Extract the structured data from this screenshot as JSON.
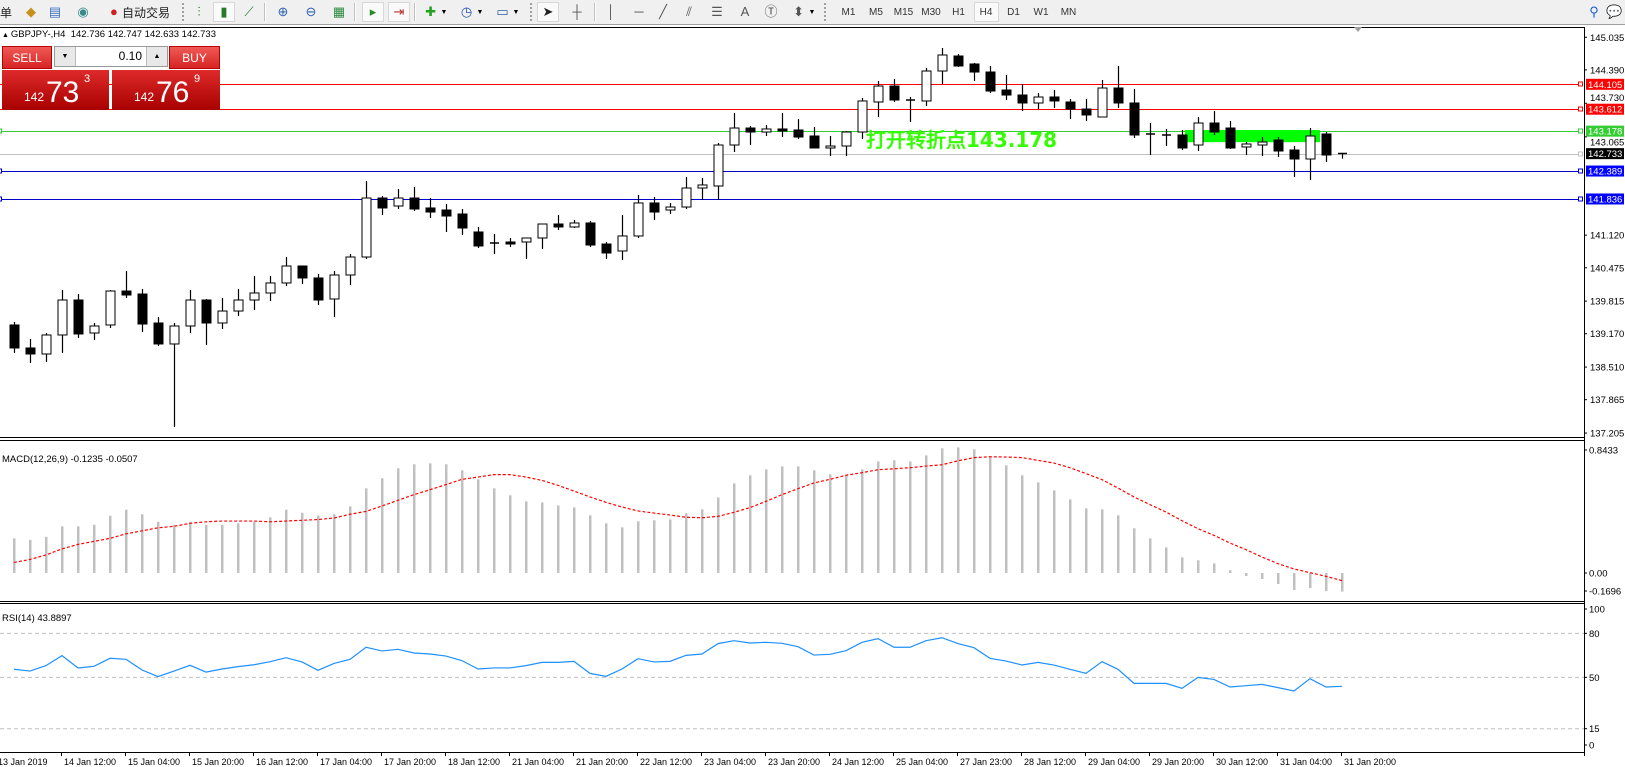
{
  "toolbar": {
    "menu_fragment": "单",
    "auto_trading": "自动交易",
    "timeframes": [
      "M1",
      "M5",
      "M15",
      "M30",
      "H1",
      "H4",
      "D1",
      "W1",
      "MN"
    ],
    "active_timeframe": "H4"
  },
  "header": {
    "symbol": "GBPJPY-,H4",
    "ohlc": "142.736 142.747 142.633 142.733"
  },
  "trade_panel": {
    "sell_label": "SELL",
    "buy_label": "BUY",
    "lot": "0.10",
    "sell_price": {
      "prefix": "142",
      "big": "73",
      "sup": "3"
    },
    "buy_price": {
      "prefix": "142",
      "big": "76",
      "sup": "9"
    },
    "color": "#d62424"
  },
  "annotation": {
    "text": "打开转折点143.178",
    "color": "#33ff00",
    "box_color": "#00ff00"
  },
  "chart_data": [
    {
      "type": "candlestick",
      "symbol": "GBPJPY-",
      "timeframe": "H4",
      "ylim": [
        137.205,
        145.035
      ],
      "y_ticks": [
        "145.035",
        "144.390",
        "143.730",
        "143.065",
        "141.120",
        "140.475",
        "139.815",
        "139.170",
        "138.510",
        "137.865",
        "137.205"
      ],
      "x_tick_labels": [
        "13 Jan 2019",
        "14 Jan 12:00",
        "15 Jan 04:00",
        "15 Jan 20:00",
        "16 Jan 12:00",
        "17 Jan 04:00",
        "17 Jan 20:00",
        "18 Jan 12:00",
        "21 Jan 04:00",
        "21 Jan 20:00",
        "22 Jan 12:00",
        "23 Jan 04:00",
        "23 Jan 20:00",
        "24 Jan 12:00",
        "25 Jan 04:00",
        "27 Jan 23:00",
        "28 Jan 12:00",
        "29 Jan 04:00",
        "29 Jan 20:00",
        "30 Jan 12:00",
        "31 Jan 04:00",
        "31 Jan 20:00"
      ],
      "bull_color": "#ffffff",
      "bear_color": "#000000",
      "candles_ohlc": [
        [
          139.343,
          139.402,
          138.789,
          138.888
        ],
        [
          138.888,
          139.066,
          138.591,
          138.769
        ],
        [
          138.769,
          139.184,
          138.61,
          139.145
        ],
        [
          139.145,
          140.035,
          138.789,
          139.837
        ],
        [
          139.837,
          139.956,
          139.085,
          139.165
        ],
        [
          139.184,
          139.382,
          139.046,
          139.323
        ],
        [
          139.343,
          140.035,
          139.283,
          140.015
        ],
        [
          140.015,
          140.411,
          139.877,
          139.936
        ],
        [
          139.956,
          140.055,
          139.204,
          139.362
        ],
        [
          139.382,
          139.501,
          138.927,
          138.967
        ],
        [
          138.967,
          139.382,
          137.324,
          139.323
        ],
        [
          139.323,
          140.035,
          139.184,
          139.837
        ],
        [
          139.837,
          139.857,
          138.947,
          139.382
        ],
        [
          139.382,
          139.877,
          139.263,
          139.619
        ],
        [
          139.619,
          140.055,
          139.521,
          139.837
        ],
        [
          139.837,
          140.312,
          139.639,
          139.976
        ],
        [
          139.976,
          140.312,
          139.817,
          140.174
        ],
        [
          140.174,
          140.688,
          140.114,
          140.51
        ],
        [
          140.51,
          140.52,
          140.154,
          140.273
        ],
        [
          140.273,
          140.352,
          139.738,
          139.837
        ],
        [
          139.857,
          140.411,
          139.501,
          140.332
        ],
        [
          140.332,
          140.747,
          140.134,
          140.688
        ],
        [
          140.688,
          142.192,
          140.648,
          141.855
        ],
        [
          141.855,
          141.895,
          141.519,
          141.658
        ],
        [
          141.697,
          142.033,
          141.638,
          141.855
        ],
        [
          141.855,
          142.073,
          141.598,
          141.638
        ],
        [
          141.658,
          141.855,
          141.46,
          141.578
        ],
        [
          141.618,
          141.737,
          141.183,
          141.499
        ],
        [
          141.539,
          141.638,
          141.123,
          141.262
        ],
        [
          141.183,
          141.282,
          140.866,
          140.906
        ],
        [
          140.965,
          141.143,
          140.747,
          140.965
        ],
        [
          140.985,
          141.064,
          140.886,
          140.945
        ],
        [
          140.985,
          141.064,
          140.648,
          141.064
        ],
        [
          141.064,
          141.341,
          140.846,
          141.341
        ],
        [
          141.341,
          141.519,
          141.222,
          141.282
        ],
        [
          141.282,
          141.42,
          141.262,
          141.361
        ],
        [
          141.361,
          141.4,
          140.886,
          140.925
        ],
        [
          140.945,
          140.985,
          140.648,
          140.767
        ],
        [
          140.807,
          141.519,
          140.629,
          141.104
        ],
        [
          141.104,
          141.915,
          141.064,
          141.757
        ],
        [
          141.757,
          141.875,
          141.42,
          141.578
        ],
        [
          141.618,
          141.757,
          141.539,
          141.677
        ],
        [
          141.677,
          142.271,
          141.638,
          142.053
        ],
        [
          142.053,
          142.251,
          141.816,
          142.113
        ],
        [
          142.093,
          142.944,
          141.816,
          142.904
        ],
        [
          142.904,
          143.537,
          142.766,
          143.24
        ],
        [
          143.24,
          143.28,
          142.904,
          143.161
        ],
        [
          143.161,
          143.3,
          143.082,
          143.221
        ],
        [
          143.221,
          143.537,
          143.062,
          143.181
        ],
        [
          143.201,
          143.418,
          143.023,
          143.062
        ],
        [
          143.082,
          143.26,
          142.845,
          142.845
        ],
        [
          142.845,
          143.082,
          142.686,
          142.884
        ],
        [
          142.884,
          143.181,
          142.686,
          143.161
        ],
        [
          143.161,
          143.834,
          143.023,
          143.775
        ],
        [
          143.755,
          144.17,
          143.458,
          144.071
        ],
        [
          144.071,
          144.21,
          143.755,
          143.794
        ],
        [
          143.794,
          143.854,
          143.359,
          143.785
        ],
        [
          143.775,
          144.428,
          143.676,
          144.368
        ],
        [
          144.368,
          144.823,
          144.111,
          144.685
        ],
        [
          144.665,
          144.705,
          144.447,
          144.467
        ],
        [
          144.507,
          144.527,
          144.17,
          144.348
        ],
        [
          144.348,
          144.467,
          143.933,
          143.972
        ],
        [
          143.992,
          144.289,
          143.794,
          143.893
        ],
        [
          143.893,
          144.111,
          143.577,
          143.735
        ],
        [
          143.735,
          143.933,
          143.616,
          143.854
        ],
        [
          143.854,
          143.992,
          143.636,
          143.775
        ],
        [
          143.755,
          143.814,
          143.418,
          143.616
        ],
        [
          143.616,
          143.814,
          143.379,
          143.498
        ],
        [
          143.458,
          144.19,
          143.458,
          144.032
        ],
        [
          144.032,
          144.467,
          143.636,
          143.735
        ],
        [
          143.735,
          144.012,
          143.043,
          143.102
        ],
        [
          143.122,
          143.339,
          142.706,
          143.122
        ],
        [
          143.102,
          143.221,
          142.884,
          143.102
        ],
        [
          143.102,
          143.201,
          142.805,
          142.845
        ],
        [
          142.904,
          143.458,
          142.785,
          143.339
        ],
        [
          143.339,
          143.577,
          143.102,
          143.161
        ],
        [
          143.24,
          143.379,
          142.825,
          142.845
        ],
        [
          142.865,
          142.963,
          142.706,
          142.924
        ],
        [
          142.904,
          143.062,
          142.686,
          142.963
        ],
        [
          143.003,
          143.062,
          142.667,
          142.785
        ],
        [
          142.805,
          142.884,
          142.271,
          142.627
        ],
        [
          142.627,
          143.24,
          142.212,
          143.082
        ],
        [
          143.122,
          143.161,
          142.568,
          142.706
        ],
        [
          142.736,
          142.747,
          142.633,
          142.733
        ]
      ],
      "horizontal_lines": [
        {
          "price": 144.105,
          "label": "144.105",
          "color": "#ff0000",
          "left_marker": false
        },
        {
          "price": 143.612,
          "label": "143.612",
          "color": "#ff0000",
          "left_marker": false
        },
        {
          "price": 143.178,
          "label": "143.178",
          "color": "#33cc33",
          "left_marker": true
        },
        {
          "price": 142.733,
          "label": "142.733",
          "color": "#c0c0c0",
          "label_bg": "#000000",
          "left_marker": false
        },
        {
          "price": 142.389,
          "label": "142.389",
          "color": "#0000cc",
          "label_bg": "#0000ff",
          "left_marker": true
        },
        {
          "price": 141.836,
          "label": "141.836",
          "color": "#0000cc",
          "label_bg": "#0000ff",
          "left_marker": true
        }
      ],
      "highlight_zone": {
        "price_top": 143.2,
        "price_bottom": 142.96
      }
    },
    {
      "type": "bar+line",
      "indicator": "MACD(12,26,9)",
      "label": "MACD(12,26,9) -0.1235 -0.0507",
      "ylim": [
        -0.1696,
        0.8433
      ],
      "y_ticks": [
        "0.8433",
        "0.00",
        "-0.1696"
      ],
      "histogram_color": "#c0c0c0",
      "signal_color": "#ff0000",
      "macd": [
        0.23,
        0.22,
        0.24,
        0.31,
        0.31,
        0.32,
        0.38,
        0.42,
        0.39,
        0.34,
        0.32,
        0.34,
        0.32,
        0.32,
        0.33,
        0.34,
        0.37,
        0.42,
        0.4,
        0.38,
        0.39,
        0.443,
        0.562,
        0.629,
        0.695,
        0.722,
        0.728,
        0.722,
        0.682,
        0.622,
        0.562,
        0.516,
        0.476,
        0.469,
        0.449,
        0.436,
        0.383,
        0.33,
        0.303,
        0.343,
        0.35,
        0.356,
        0.396,
        0.423,
        0.502,
        0.595,
        0.649,
        0.688,
        0.708,
        0.708,
        0.682,
        0.655,
        0.649,
        0.688,
        0.741,
        0.748,
        0.741,
        0.781,
        0.828,
        0.834,
        0.821,
        0.775,
        0.715,
        0.649,
        0.602,
        0.549,
        0.489,
        0.429,
        0.423,
        0.383,
        0.297,
        0.23,
        0.17,
        0.104,
        0.084,
        0.064,
        0.018,
        -0.02,
        -0.04,
        -0.073,
        -0.113,
        -0.1,
        -0.12,
        -0.1235
      ],
      "signal": [
        0.07,
        0.09,
        0.12,
        0.16,
        0.19,
        0.21,
        0.23,
        0.26,
        0.28,
        0.3,
        0.31,
        0.33,
        0.34,
        0.345,
        0.345,
        0.345,
        0.34,
        0.345,
        0.35,
        0.355,
        0.365,
        0.39,
        0.409,
        0.445,
        0.483,
        0.52,
        0.553,
        0.587,
        0.622,
        0.637,
        0.653,
        0.653,
        0.637,
        0.615,
        0.582,
        0.544,
        0.505,
        0.469,
        0.438,
        0.412,
        0.398,
        0.385,
        0.37,
        0.367,
        0.376,
        0.403,
        0.434,
        0.476,
        0.52,
        0.56,
        0.598,
        0.622,
        0.649,
        0.666,
        0.686,
        0.692,
        0.699,
        0.71,
        0.719,
        0.745,
        0.766,
        0.772,
        0.77,
        0.766,
        0.748,
        0.73,
        0.699,
        0.66,
        0.62,
        0.564,
        0.505,
        0.454,
        0.405,
        0.347,
        0.294,
        0.25,
        0.199,
        0.155,
        0.106,
        0.062,
        0.027,
        0.002,
        -0.022,
        -0.0507
      ]
    },
    {
      "type": "line",
      "indicator": "RSI(14)",
      "label": "RSI(14) 43.8897",
      "ylim": [
        0,
        100
      ],
      "y_ticks": [
        "100",
        "80",
        "50",
        "15",
        "0"
      ],
      "levels": [
        80,
        50,
        15
      ],
      "color": "#1e90ff",
      "values": [
        55.5,
        54.3,
        58,
        64.8,
        56.4,
        57.5,
        63,
        62.3,
        55,
        50.5,
        54.3,
        58.2,
        53.6,
        55.7,
        57.3,
        58.6,
        60.7,
        63.4,
        60.5,
        54.8,
        59.5,
        62.3,
        70.5,
        68,
        69.1,
        66.6,
        65.9,
        64.5,
        61.4,
        55.7,
        56.4,
        56.4,
        58,
        60.2,
        60.2,
        60.9,
        52.7,
        50.7,
        55.7,
        62.7,
        60.5,
        60.9,
        65,
        65.9,
        73,
        75,
        73.4,
        73.9,
        73.2,
        70.9,
        65.2,
        65.7,
        68.2,
        73.9,
        76.4,
        70.5,
        70.5,
        75,
        77,
        73,
        70.2,
        63,
        61.1,
        58.4,
        60.2,
        58.4,
        55.5,
        52.7,
        60.7,
        55.5,
        45.9,
        45.9,
        45.9,
        42.5,
        50,
        48.6,
        43.4,
        44.3,
        45.2,
        43,
        40.7,
        49.1,
        43.4,
        43.8897
      ]
    }
  ]
}
